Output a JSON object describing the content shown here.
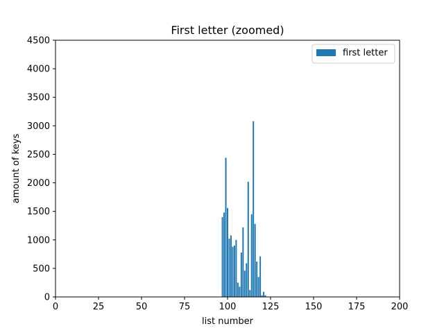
{
  "chart_data": {
    "type": "bar",
    "title": "First letter (zoomed)",
    "xlabel": "list number",
    "ylabel": "amount of keys",
    "xlim": [
      0,
      200
    ],
    "ylim": [
      0,
      4500
    ],
    "xticks": [
      0,
      25,
      50,
      75,
      100,
      125,
      150,
      175,
      200
    ],
    "yticks": [
      0,
      500,
      1000,
      1500,
      2000,
      2500,
      3000,
      3500,
      4000,
      4500
    ],
    "grid": false,
    "legend_position": "top-right",
    "series": [
      {
        "name": "first letter",
        "color": "#1f77b4",
        "x": [
          97,
          98,
          99,
          100,
          101,
          102,
          103,
          104,
          105,
          106,
          107,
          108,
          109,
          110,
          111,
          112,
          113,
          114,
          115,
          116,
          117,
          118,
          119,
          120,
          121,
          122
        ],
        "values": [
          1400,
          1480,
          2440,
          1560,
          1020,
          1080,
          880,
          900,
          1000,
          250,
          180,
          780,
          1220,
          460,
          590,
          2020,
          120,
          1450,
          3080,
          1280,
          620,
          350,
          710,
          30,
          90,
          30
        ]
      }
    ]
  }
}
